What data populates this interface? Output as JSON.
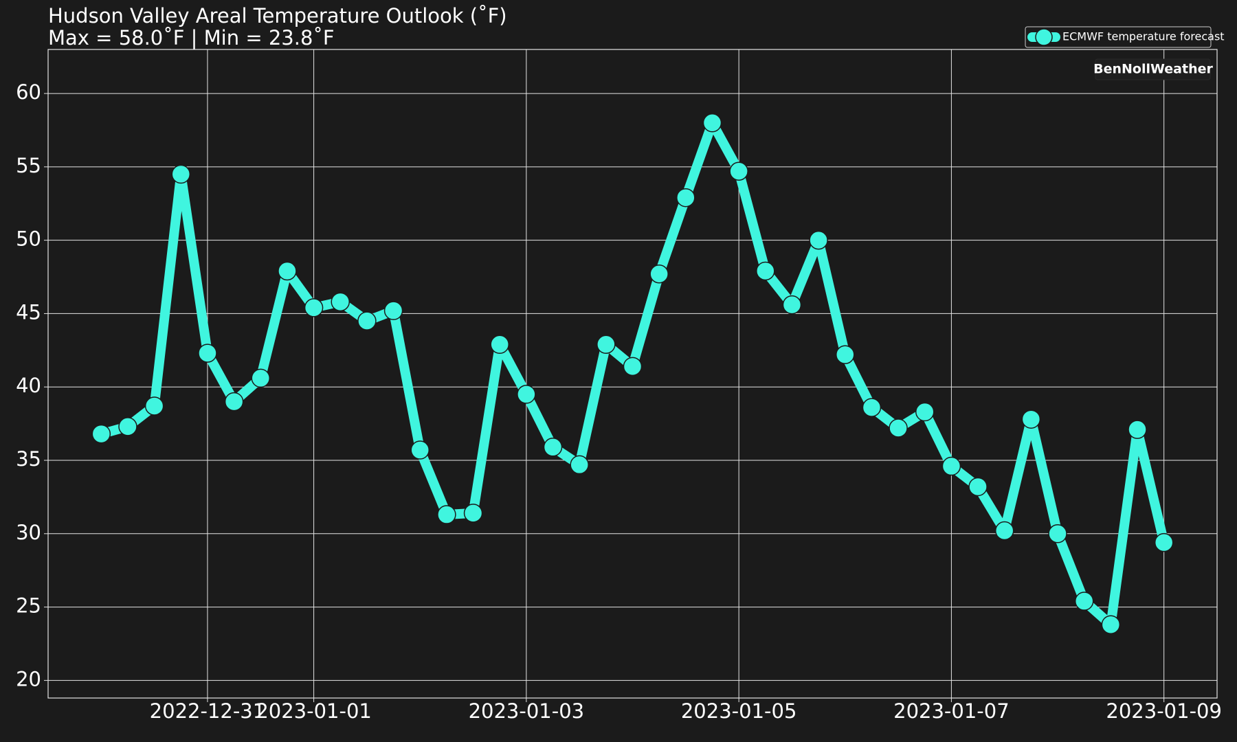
{
  "chart_data": {
    "type": "line",
    "title": "Hudson Valley Areal Temperature Outlook (˚F)",
    "subtitle": "Max = 58.0˚F | Min = 23.8˚F",
    "watermark": "BenNollWeather",
    "x": [
      "2022-12-30T00:00",
      "2022-12-30T06:00",
      "2022-12-30T12:00",
      "2022-12-30T18:00",
      "2022-12-31T00:00",
      "2022-12-31T06:00",
      "2022-12-31T12:00",
      "2022-12-31T18:00",
      "2023-01-01T00:00",
      "2023-01-01T06:00",
      "2023-01-01T12:00",
      "2023-01-01T18:00",
      "2023-01-02T00:00",
      "2023-01-02T06:00",
      "2023-01-02T12:00",
      "2023-01-02T18:00",
      "2023-01-03T00:00",
      "2023-01-03T06:00",
      "2023-01-03T12:00",
      "2023-01-03T18:00",
      "2023-01-04T00:00",
      "2023-01-04T06:00",
      "2023-01-04T12:00",
      "2023-01-04T18:00",
      "2023-01-05T00:00",
      "2023-01-05T06:00",
      "2023-01-05T12:00",
      "2023-01-05T18:00",
      "2023-01-06T00:00",
      "2023-01-06T06:00",
      "2023-01-06T12:00",
      "2023-01-06T18:00",
      "2023-01-07T00:00",
      "2023-01-07T06:00",
      "2023-01-07T12:00",
      "2023-01-07T18:00",
      "2023-01-08T00:00",
      "2023-01-08T06:00",
      "2023-01-08T12:00",
      "2023-01-08T18:00",
      "2023-01-09T00:00"
    ],
    "series": [
      {
        "name": "ECMWF temperature forecast",
        "color": "#40f5df",
        "values": [
          36.8,
          37.3,
          38.7,
          54.5,
          42.3,
          39.0,
          40.6,
          47.9,
          45.4,
          45.8,
          44.5,
          45.2,
          35.7,
          31.3,
          31.4,
          42.9,
          39.5,
          35.9,
          34.7,
          42.9,
          41.4,
          47.7,
          52.9,
          58.0,
          54.7,
          47.9,
          45.6,
          50.0,
          42.2,
          38.6,
          37.2,
          38.3,
          34.6,
          33.2,
          30.2,
          37.8,
          30.0,
          25.4,
          23.8,
          37.1,
          29.4
        ]
      }
    ],
    "xlim": [
      "2022-12-29T12:00",
      "2023-01-09T12:00"
    ],
    "xticks": [
      "2022-12-31",
      "2023-01-01",
      "2023-01-03",
      "2023-01-05",
      "2023-01-07",
      "2023-01-09"
    ],
    "ylim": [
      18.8,
      63.0
    ],
    "yticks": [
      20,
      25,
      30,
      35,
      40,
      45,
      50,
      55,
      60
    ],
    "grid": true,
    "legend": "upper right"
  }
}
